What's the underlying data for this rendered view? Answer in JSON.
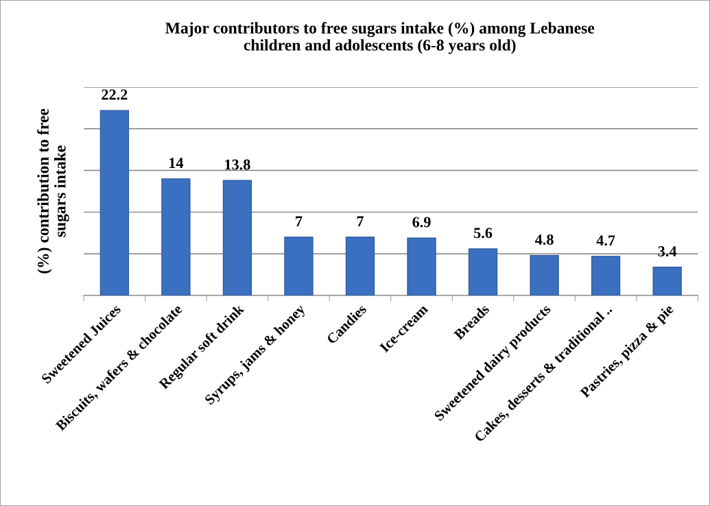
{
  "chart_data": {
    "type": "bar",
    "title": "Major contributors to free sugars intake (%) among Lebanese\nchildren and adolescents (6-8 years old)",
    "ylabel": "(%) contribution to free\nsugars intake",
    "categories": [
      "Sweetened Juices",
      "Biscuits, wafers & chocolate",
      "Regular soft drink",
      "Syrups, jams & honey",
      "Candies",
      "Ice-cream",
      "Breads",
      "Sweetened dairy products",
      "Cakes, desserts & traditional ..",
      "Pastries, pizza & pie"
    ],
    "values": [
      22.2,
      14,
      13.8,
      7,
      7,
      6.9,
      5.6,
      4.8,
      4.7,
      3.4
    ],
    "color": "#3b6fbf",
    "ylim": [
      0,
      25
    ],
    "yticks": [
      {
        "value": 0,
        "label": null
      },
      {
        "value": 5,
        "label": null
      },
      {
        "value": 10,
        "label": null
      },
      {
        "value": 15,
        "label": null
      },
      {
        "value": 20,
        "label": null
      },
      {
        "value": 25,
        "label": null
      }
    ],
    "tick_labels": "x",
    "grid": "y",
    "data_labels": true
  }
}
